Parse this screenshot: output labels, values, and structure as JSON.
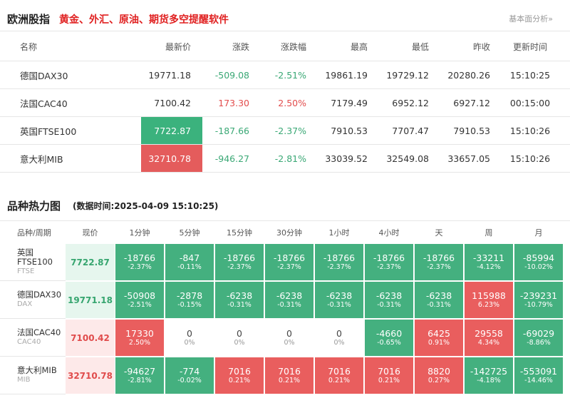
{
  "header": {
    "title": "欧洲股指",
    "promo": "黄金、外汇、原油、期货多空提醒软件",
    "more_link": "基本面分析»"
  },
  "indices_table": {
    "columns": [
      "名称",
      "最新价",
      "涨跌",
      "涨跌幅",
      "最高",
      "最低",
      "昨收",
      "更新时间"
    ],
    "rows": [
      {
        "name": "德国DAX30",
        "last": "19771.18",
        "change": "-509.08",
        "pct": "-2.51%",
        "high": "19861.19",
        "low": "19729.12",
        "prev": "20280.26",
        "time": "15:10:25",
        "dir": "down",
        "flash": ""
      },
      {
        "name": "法国CAC40",
        "last": "7100.42",
        "change": "173.30",
        "pct": "2.50%",
        "high": "7179.49",
        "low": "6952.12",
        "prev": "6927.12",
        "time": "00:15:00",
        "dir": "up",
        "flash": ""
      },
      {
        "name": "英国FTSE100",
        "last": "7722.87",
        "change": "-187.66",
        "pct": "-2.37%",
        "high": "7910.53",
        "low": "7707.47",
        "prev": "7910.53",
        "time": "15:10:26",
        "dir": "down",
        "flash": "down"
      },
      {
        "name": "意大利MIB",
        "last": "32710.78",
        "change": "-946.27",
        "pct": "-2.81%",
        "high": "33039.52",
        "low": "32549.08",
        "prev": "33657.05",
        "time": "15:10:26",
        "dir": "down",
        "flash": "up"
      }
    ]
  },
  "heatmap": {
    "title": "品种热力图",
    "timestamp": "(数据时间:2025-04-09 15:10:25)",
    "columns": [
      "品种/周期",
      "现价",
      "1分钟",
      "5分钟",
      "15分钟",
      "30分钟",
      "1小时",
      "4小时",
      "天",
      "周",
      "月"
    ],
    "rows": [
      {
        "name_lines": [
          "英国",
          "FTSE100"
        ],
        "code": "FTSE",
        "price": "7722.87",
        "price_dir": "down",
        "cells": [
          [
            "-18766",
            "-2.37%",
            "g"
          ],
          [
            "-847",
            "-0.11%",
            "g"
          ],
          [
            "-18766",
            "-2.37%",
            "g"
          ],
          [
            "-18766",
            "-2.37%",
            "g"
          ],
          [
            "-18766",
            "-2.37%",
            "g"
          ],
          [
            "-18766",
            "-2.37%",
            "g"
          ],
          [
            "-18766",
            "-2.37%",
            "g"
          ],
          [
            "-33211",
            "-4.12%",
            "g"
          ],
          [
            "-85994",
            "-10.02%",
            "g"
          ]
        ]
      },
      {
        "name_lines": [
          "德国DAX30"
        ],
        "code": "DAX",
        "price": "19771.18",
        "price_dir": "down",
        "cells": [
          [
            "-50908",
            "-2.51%",
            "g"
          ],
          [
            "-2878",
            "-0.15%",
            "g"
          ],
          [
            "-6238",
            "-0.31%",
            "g"
          ],
          [
            "-6238",
            "-0.31%",
            "g"
          ],
          [
            "-6238",
            "-0.31%",
            "g"
          ],
          [
            "-6238",
            "-0.31%",
            "g"
          ],
          [
            "-6238",
            "-0.31%",
            "g"
          ],
          [
            "115988",
            "6.23%",
            "r"
          ],
          [
            "-239231",
            "-10.79%",
            "g"
          ]
        ]
      },
      {
        "name_lines": [
          "法国CAC40"
        ],
        "code": "CAC40",
        "price": "7100.42",
        "price_dir": "up",
        "cells": [
          [
            "17330",
            "2.50%",
            "r"
          ],
          [
            "0",
            "0%",
            "z"
          ],
          [
            "0",
            "0%",
            "z"
          ],
          [
            "0",
            "0%",
            "z"
          ],
          [
            "0",
            "0%",
            "z"
          ],
          [
            "-4660",
            "-0.65%",
            "g"
          ],
          [
            "6425",
            "0.91%",
            "r"
          ],
          [
            "29558",
            "4.34%",
            "r"
          ],
          [
            "-69029",
            "-8.86%",
            "g"
          ]
        ]
      },
      {
        "name_lines": [
          "意大利MIB"
        ],
        "code": "MIB",
        "price": "32710.78",
        "price_dir": "up",
        "cells": [
          [
            "-94627",
            "-2.81%",
            "g"
          ],
          [
            "-774",
            "-0.02%",
            "g"
          ],
          [
            "7016",
            "0.21%",
            "r"
          ],
          [
            "7016",
            "0.21%",
            "r"
          ],
          [
            "7016",
            "0.21%",
            "r"
          ],
          [
            "7016",
            "0.21%",
            "r"
          ],
          [
            "8820",
            "0.27%",
            "r"
          ],
          [
            "-142725",
            "-4.18%",
            "g"
          ],
          [
            "-553091",
            "-14.46%",
            "g"
          ]
        ]
      }
    ]
  },
  "colors": {
    "up": "#e24c4c",
    "down": "#3aa875",
    "heat_red": "#e95e5e",
    "heat_green": "#44b07f",
    "promo_red": "#e02020"
  }
}
